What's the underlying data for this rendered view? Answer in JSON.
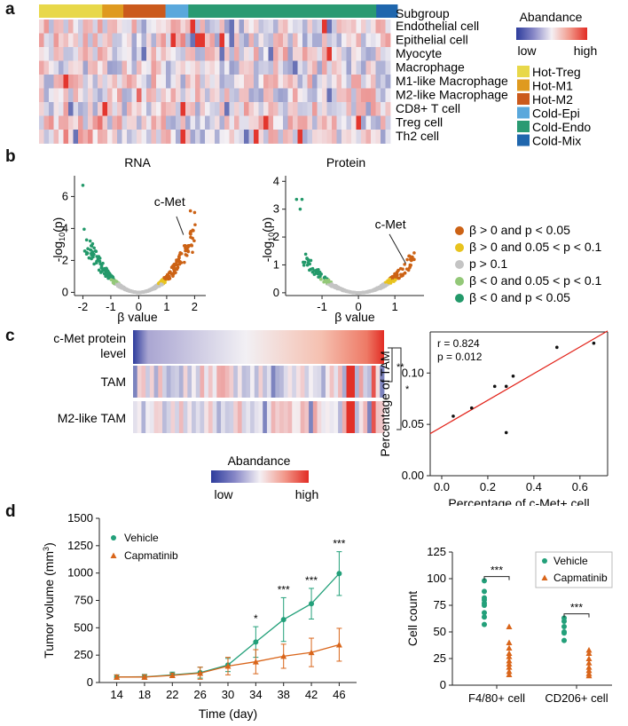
{
  "panels": {
    "a": "a",
    "b": "b",
    "c": "c",
    "d": "d"
  },
  "panel_a": {
    "subgroup_label": "Subgroup",
    "rows": [
      "Endothelial cell",
      "Epithelial cell",
      "Myocyte",
      "Macrophage",
      "M1-like Macrophage",
      "M2-like Macrophage",
      "CD8+ T cell",
      "Treg cell",
      "Th2 cell"
    ],
    "legend_title": "Abandance",
    "low": "low",
    "high": "high",
    "subgroups": [
      {
        "name": "Hot-Treg",
        "color": "#e8d84a"
      },
      {
        "name": "Hot-M1",
        "color": "#df9a1f"
      },
      {
        "name": "Hot-M2",
        "color": "#cb5a1c"
      },
      {
        "name": "Cold-Epi",
        "color": "#5aa8dc"
      },
      {
        "name": "Cold-Endo",
        "color": "#2a9a72"
      },
      {
        "name": "Cold-Mix",
        "color": "#1f66ad"
      }
    ],
    "subgroup_fractions": [
      0.18,
      0.06,
      0.12,
      0.065,
      0.535,
      0.06
    ]
  },
  "panel_b": {
    "rna_title": "RNA",
    "protein_title": "Protein",
    "cmet": "c-Met",
    "xlabel": "β value",
    "ylabel_base": "-log",
    "ylabel_sub": "10",
    "ylabel_end": "(p)",
    "legend": [
      {
        "text": "β > 0 and p < 0.05",
        "color": "#cc6215"
      },
      {
        "text": "β > 0 and 0.05 <  p <  0.1",
        "color": "#e8c31e"
      },
      {
        "text": "p > 0.1",
        "color": "#c4c4c4"
      },
      {
        "text": "β < 0 and 0.05 <  p <  0.1",
        "color": "#93c878"
      },
      {
        "text": "β < 0 and p <  0.05",
        "color": "#23996a"
      }
    ]
  },
  "panel_c": {
    "row_labels": [
      "c-Met protein",
      "level",
      "TAM",
      "M2-like TAM"
    ],
    "sig1": "**",
    "sig2": "*",
    "legend_title": "Abandance",
    "low": "low",
    "high": "high",
    "stats_r": "r = 0.824",
    "stats_p": "p = 0.012"
  },
  "panel_d": {
    "line_legend": [
      "Vehicle",
      "Capmatinib"
    ],
    "line_ylabel_base": "Tumor volume (mm",
    "line_ylabel_sup": "3",
    "line_ylabel_end": ")",
    "line_xlabel": "Time (day)",
    "dot_ylabel": "Cell count",
    "dot_legend": [
      "Vehicle",
      "Capmatinib"
    ],
    "dot_sig": [
      "***",
      "***"
    ],
    "colors": {
      "vehicle": "#23a07a",
      "capmatinib": "#d9651a"
    }
  },
  "chart_data": [
    {
      "type": "scatter",
      "title": "RNA",
      "xlabel": "β value",
      "ylabel": "-log10(p)",
      "xlim": [
        -2.3,
        2.4
      ],
      "ylim": [
        -0.2,
        7.3
      ],
      "xticks": [
        "-2",
        "-1",
        "0",
        "1",
        "2"
      ],
      "yticks": [
        "0",
        "2",
        "4",
        "6"
      ],
      "annotation": "c-Met",
      "outlier_points": [
        {
          "x": -2.0,
          "y": 6.7
        },
        {
          "x": 2.0,
          "y": 5.0
        },
        {
          "x": 1.85,
          "y": 5.1
        }
      ]
    },
    {
      "type": "scatter",
      "title": "Protein",
      "xlabel": "β value",
      "ylabel": "-log10(p)",
      "xlim": [
        -2.0,
        1.8
      ],
      "ylim": [
        -0.1,
        4.2
      ],
      "xticks": [
        "-1",
        "0",
        "1"
      ],
      "yticks": [
        "0",
        "1",
        "2",
        "3",
        "4"
      ],
      "annotation": "c-Met",
      "outlier_points": [
        {
          "x": -1.7,
          "y": 3.35
        },
        {
          "x": -1.55,
          "y": 3.35
        },
        {
          "x": -1.6,
          "y": 3.0
        }
      ]
    },
    {
      "type": "scatter",
      "title": "",
      "xlabel": "Percentage of c-Met+ cell",
      "ylabel": "Percentage of TAM",
      "xlim": [
        -0.05,
        0.72
      ],
      "ylim": [
        0.0,
        0.14
      ],
      "xticks": [
        "0.0",
        "0.2",
        "0.4",
        "0.6"
      ],
      "yticks": [
        "0.00",
        "0.05",
        "0.10"
      ],
      "points": [
        {
          "x": 0.05,
          "y": 0.058
        },
        {
          "x": 0.13,
          "y": 0.066
        },
        {
          "x": 0.23,
          "y": 0.087
        },
        {
          "x": 0.28,
          "y": 0.087
        },
        {
          "x": 0.31,
          "y": 0.097
        },
        {
          "x": 0.28,
          "y": 0.042
        },
        {
          "x": 0.5,
          "y": 0.125
        },
        {
          "x": 0.66,
          "y": 0.129
        }
      ],
      "fit_line": {
        "x": [
          -0.05,
          0.72
        ],
        "y": [
          0.041,
          0.141
        ]
      },
      "annotations": [
        "r = 0.824",
        "p = 0.012"
      ]
    },
    {
      "type": "line",
      "title": "",
      "xlabel": "Time (day)",
      "ylabel": "Tumor volume (mm3)",
      "x": [
        14,
        18,
        22,
        26,
        30,
        34,
        38,
        42,
        46
      ],
      "ylim": [
        0,
        1500
      ],
      "yticks": [
        "0",
        "250",
        "500",
        "750",
        "1000",
        "1250",
        "1500"
      ],
      "series": [
        {
          "name": "Vehicle",
          "values": [
            50,
            52,
            70,
            90,
            160,
            370,
            575,
            720,
            995
          ],
          "errors": [
            20,
            22,
            25,
            50,
            60,
            140,
            200,
            140,
            200
          ]
        },
        {
          "name": "Capmatinib",
          "values": [
            50,
            50,
            65,
            85,
            150,
            190,
            240,
            275,
            345
          ],
          "errors": [
            20,
            20,
            20,
            55,
            80,
            110,
            110,
            130,
            150
          ]
        }
      ],
      "significance": [
        {
          "x": 34,
          "label": "*"
        },
        {
          "x": 38,
          "label": "***"
        },
        {
          "x": 42,
          "label": "***"
        },
        {
          "x": 46,
          "label": "***"
        }
      ]
    },
    {
      "type": "scatter",
      "title": "",
      "xlabel": "",
      "ylabel": "Cell count",
      "categories": [
        "F4/80+ cell",
        "CD206+ cell"
      ],
      "ylim": [
        0,
        125
      ],
      "yticks": [
        "0",
        "25",
        "50",
        "75",
        "100",
        "125"
      ],
      "series": [
        {
          "name": "Vehicle",
          "groups": [
            [
              98,
              88,
              82,
              80,
              77,
              75,
              68,
              64,
              57
            ],
            [
              63,
              60,
              55,
              50,
              49,
              42
            ]
          ]
        },
        {
          "name": "Capmatinib",
          "groups": [
            [
              55,
              40,
              35,
              30,
              27,
              23,
              20,
              17,
              13,
              10
            ],
            [
              33,
              30,
              25,
              21,
              17,
              14,
              11,
              9
            ]
          ]
        }
      ],
      "significance": [
        "***",
        "***"
      ]
    }
  ]
}
